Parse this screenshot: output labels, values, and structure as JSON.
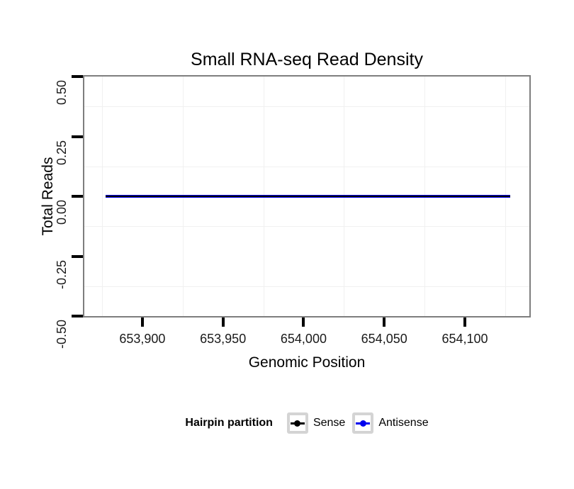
{
  "chart_data": {
    "type": "line",
    "title": "Small RNA-seq Read Density",
    "xlabel": "Genomic Position",
    "ylabel": "Total Reads",
    "xlim": [
      653864,
      654140
    ],
    "ylim": [
      -0.5,
      0.5
    ],
    "grid": "minor-only",
    "x_ticks": [
      {
        "value": 653900,
        "label": "653,900"
      },
      {
        "value": 653950,
        "label": "653,950"
      },
      {
        "value": 654000,
        "label": "654,000"
      },
      {
        "value": 654050,
        "label": "654,050"
      },
      {
        "value": 654100,
        "label": "654,100"
      }
    ],
    "y_ticks": [
      {
        "value": 0.5,
        "label": "0.50"
      },
      {
        "value": 0.25,
        "label": "0.25"
      },
      {
        "value": 0,
        "label": "0.00"
      },
      {
        "value": -0.25,
        "label": "-0.25"
      },
      {
        "value": -0.5,
        "label": "-0.50"
      }
    ],
    "x_minor_gridlines": [
      653875,
      653925,
      653975,
      654025,
      654075,
      654125
    ],
    "y_minor_gridlines": [
      0.375,
      0.125,
      -0.125,
      -0.375
    ],
    "series": [
      {
        "name": "Antisense",
        "color": "#0000ee",
        "x_start": 653877,
        "x_end": 654128,
        "constant_y": 0,
        "thickness": 4
      },
      {
        "name": "Sense",
        "color": "#000000",
        "x_start": 653877,
        "x_end": 654128,
        "constant_y": 0,
        "thickness": 2
      }
    ],
    "legend": {
      "title": "Hairpin partition",
      "position": "bottom",
      "entries": [
        {
          "label": "Sense",
          "color": "#000000"
        },
        {
          "label": "Antisense",
          "color": "#0000ee"
        }
      ]
    },
    "colors": {
      "panel_border": "#7e7e7e",
      "tick_mark": "#000000",
      "minor_gridline": "#f0f0f0",
      "legend_key_border": "#d4d4d4"
    }
  }
}
